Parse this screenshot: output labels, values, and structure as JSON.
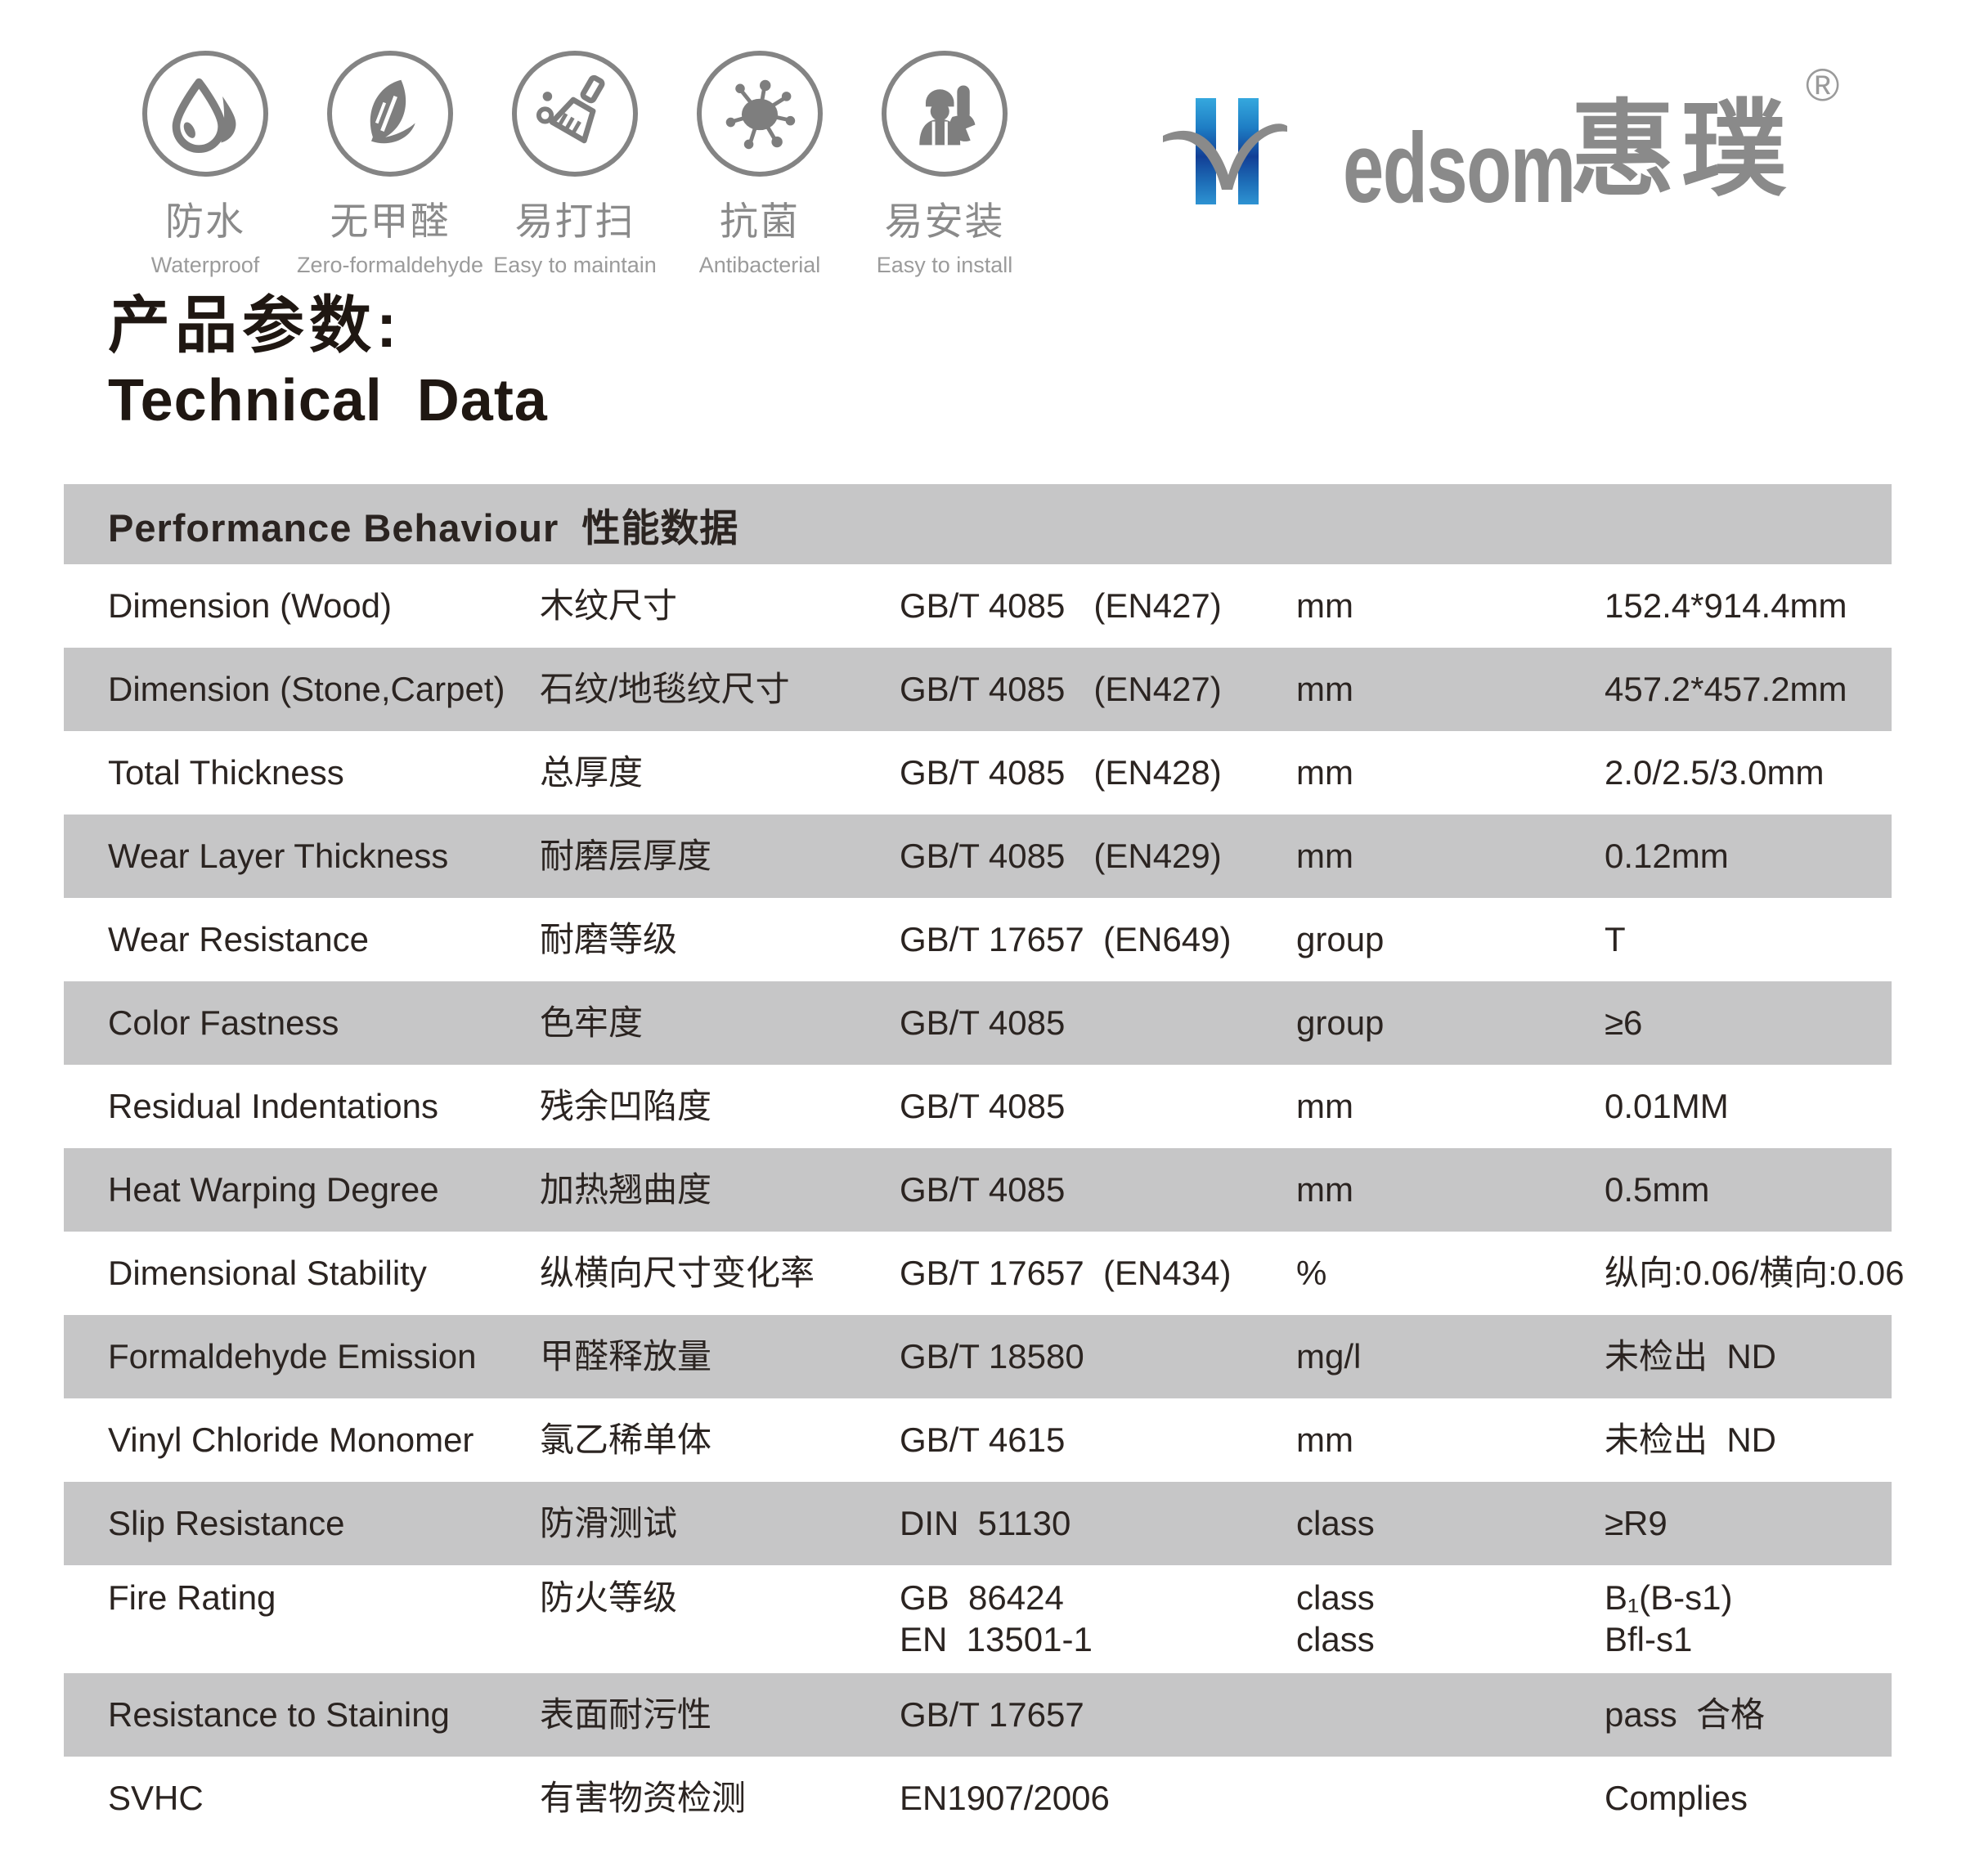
{
  "brand": {
    "name_latin_rest": "edsom",
    "name_cn": "惠璞",
    "registered_mark": "®",
    "blue_dark": "#123f96",
    "blue_light": "#35a8de",
    "gray": "#8a8a8a"
  },
  "features": [
    {
      "zh": "防水",
      "en": "Waterproof",
      "icon": "water-drop-icon"
    },
    {
      "zh": "无甲醛",
      "en": "Zero-formaldehyde",
      "icon": "leaf-icon"
    },
    {
      "zh": "易打扫",
      "en": "Easy to maintain",
      "icon": "broom-icon"
    },
    {
      "zh": "抗菌",
      "en": "Antibacterial",
      "icon": "virus-icon"
    },
    {
      "zh": "易安装",
      "en": "Easy to install",
      "icon": "worker-icon"
    }
  ],
  "title": {
    "zh": "产品参数:",
    "en": "Technical  Data"
  },
  "table": {
    "header": "Performance Behaviour  性能数据",
    "band_color": "#c6c6c7",
    "text_color": "#2b2421",
    "rows": [
      {
        "name": "Dimension (Wood)",
        "cn": "木纹尺寸",
        "standard": [
          "GB/T 4085   (EN427)"
        ],
        "unit": [
          "mm"
        ],
        "value": [
          "152.4*914.4mm"
        ],
        "shaded": false,
        "tall": false
      },
      {
        "name": "Dimension (Stone,Carpet)",
        "cn": "石纹/地毯纹尺寸",
        "standard": [
          "GB/T 4085   (EN427)"
        ],
        "unit": [
          "mm"
        ],
        "value": [
          "457.2*457.2mm"
        ],
        "shaded": true,
        "tall": false
      },
      {
        "name": "Total Thickness",
        "cn": "总厚度",
        "standard": [
          "GB/T 4085   (EN428)"
        ],
        "unit": [
          "mm"
        ],
        "value": [
          "2.0/2.5/3.0mm"
        ],
        "shaded": false,
        "tall": false
      },
      {
        "name": "Wear Layer Thickness",
        "cn": "耐磨层厚度",
        "standard": [
          "GB/T 4085   (EN429)"
        ],
        "unit": [
          "mm"
        ],
        "value": [
          "0.12mm"
        ],
        "shaded": true,
        "tall": false
      },
      {
        "name": "Wear Resistance",
        "cn": "耐磨等级",
        "standard": [
          "GB/T 17657  (EN649)"
        ],
        "unit": [
          "group"
        ],
        "value": [
          "T"
        ],
        "shaded": false,
        "tall": false
      },
      {
        "name": "Color Fastness",
        "cn": "色牢度",
        "standard": [
          "GB/T 4085"
        ],
        "unit": [
          "group"
        ],
        "value": [
          "≥6"
        ],
        "shaded": true,
        "tall": false
      },
      {
        "name": "Residual Indentations",
        "cn": "残余凹陷度",
        "standard": [
          "GB/T 4085"
        ],
        "unit": [
          "mm"
        ],
        "value": [
          "0.01MM"
        ],
        "shaded": false,
        "tall": false
      },
      {
        "name": "Heat Warping Degree",
        "cn": "加热翘曲度",
        "standard": [
          "GB/T 4085"
        ],
        "unit": [
          "mm"
        ],
        "value": [
          "0.5mm"
        ],
        "shaded": true,
        "tall": false
      },
      {
        "name": "Dimensional Stability",
        "cn": "纵横向尺寸变化率",
        "standard": [
          "GB/T 17657  (EN434)"
        ],
        "unit": [
          "%"
        ],
        "value": [
          "纵向:0.06/横向:0.06"
        ],
        "shaded": false,
        "tall": false
      },
      {
        "name": "Formaldehyde Emission",
        "cn": "甲醛释放量",
        "standard": [
          "GB/T 18580"
        ],
        "unit": [
          "mg/l"
        ],
        "value": [
          "未检出  ND"
        ],
        "shaded": true,
        "tall": false
      },
      {
        "name": "Vinyl Chloride Monomer",
        "cn": "氯乙稀单体",
        "standard": [
          "GB/T 4615"
        ],
        "unit": [
          "mm"
        ],
        "value": [
          "未检出  ND"
        ],
        "shaded": false,
        "tall": false
      },
      {
        "name": "Slip Resistance",
        "cn": "防滑测试",
        "standard": [
          "DIN  51130"
        ],
        "unit": [
          "class"
        ],
        "value": [
          "≥R9"
        ],
        "shaded": true,
        "tall": false
      },
      {
        "name": "Fire Rating",
        "cn": "防火等级",
        "standard": [
          "GB  86424",
          "EN  13501-1"
        ],
        "unit": [
          "class",
          "class"
        ],
        "value": [
          "B₁(B-s1)",
          "Bfl-s1"
        ],
        "shaded": false,
        "tall": true
      },
      {
        "name": "Resistance to Staining",
        "cn": "表面耐污性",
        "standard": [
          "GB/T 17657"
        ],
        "unit": [],
        "value": [
          "pass  合格"
        ],
        "shaded": true,
        "tall": false
      },
      {
        "name": "SVHC",
        "cn": "有害物资检测",
        "standard": [
          "EN1907/2006"
        ],
        "unit": [],
        "value": [
          "Complies"
        ],
        "shaded": false,
        "tall": false
      }
    ]
  }
}
